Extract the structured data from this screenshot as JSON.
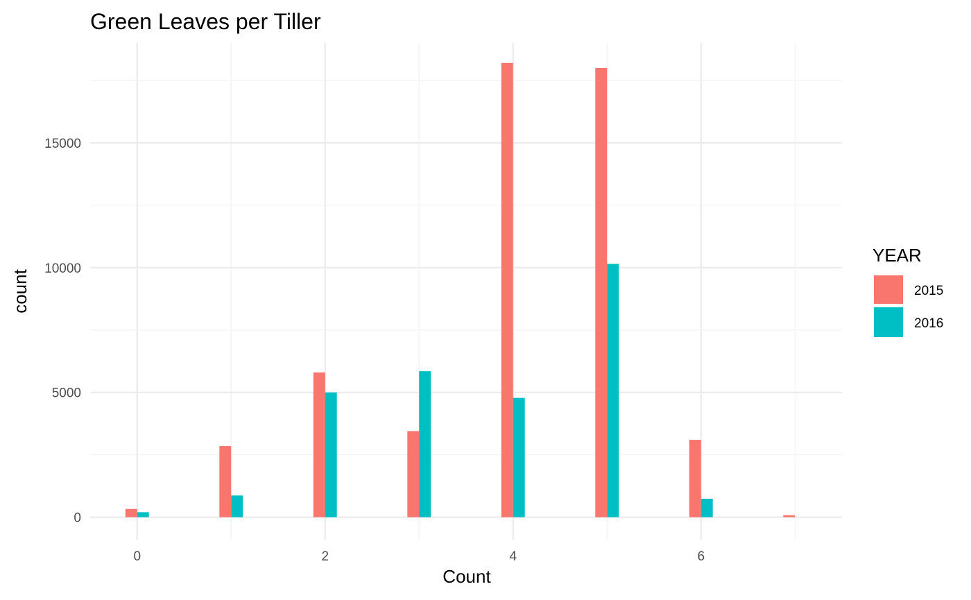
{
  "chart_data": {
    "type": "bar",
    "title": "Green Leaves per Tiller",
    "xlabel": "Count",
    "ylabel": "count",
    "x": [
      0,
      1,
      2,
      3,
      4,
      5,
      6,
      7
    ],
    "x_ticks": [
      0,
      2,
      4,
      6
    ],
    "x_tick_labels": [
      "0",
      "2",
      "4",
      "6"
    ],
    "y_ticks": [
      0,
      5000,
      10000,
      15000
    ],
    "y_tick_labels": [
      "0",
      "5000",
      "10000",
      "15000"
    ],
    "xlim": [
      -0.5,
      7.5
    ],
    "ylim": [
      -900,
      19000
    ],
    "grid": true,
    "legend": {
      "title": "YEAR",
      "position": "right"
    },
    "series": [
      {
        "name": "2015",
        "color": "#F8766D",
        "values": [
          330,
          2850,
          5800,
          3450,
          18200,
          18000,
          3100,
          80
        ]
      },
      {
        "name": "2016",
        "color": "#00BFC4",
        "values": [
          200,
          870,
          5000,
          5850,
          4780,
          10150,
          740,
          0
        ]
      }
    ]
  }
}
